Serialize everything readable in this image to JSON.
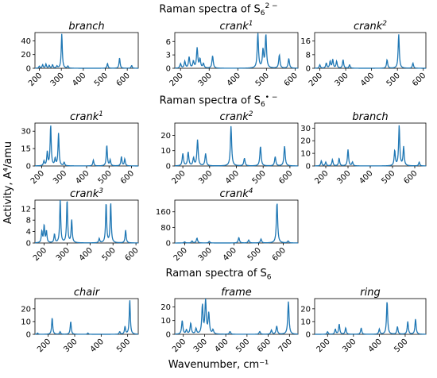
{
  "figure": {
    "section_titles": [
      {
        "text": "Raman spectra of S",
        "sub": "6",
        "sup": "2 −"
      },
      {
        "text": "Raman spectra of S",
        "sub": "6",
        "sup": "• −"
      },
      {
        "text": "Raman spectra of S",
        "sub": "6",
        "sup": ""
      }
    ],
    "ylabel": "Activity, A⁴/amu",
    "xlabel": "Wavenumber, cm⁻¹",
    "line_color": "#1f77b4"
  },
  "chart_data": [
    {
      "type": "line",
      "section": 1,
      "name": "branch",
      "title_sup": "",
      "xlim": [
        180,
        650
      ],
      "ylim": [
        0,
        52
      ],
      "xticks": [
        200,
        300,
        400,
        500,
        600
      ],
      "yticks": [
        0,
        20,
        40
      ],
      "peaks": [
        [
          200,
          3
        ],
        [
          215,
          5
        ],
        [
          230,
          6
        ],
        [
          245,
          4
        ],
        [
          260,
          5
        ],
        [
          280,
          3
        ],
        [
          302,
          50
        ],
        [
          330,
          3
        ],
        [
          510,
          7
        ],
        [
          565,
          15
        ],
        [
          620,
          4
        ]
      ]
    },
    {
      "type": "line",
      "section": 1,
      "name": "crank",
      "title_sup": "1",
      "xlim": [
        180,
        610
      ],
      "ylim": [
        0,
        8
      ],
      "xticks": [
        200,
        300,
        400,
        500,
        600
      ],
      "yticks": [
        0,
        3,
        6
      ],
      "peaks": [
        [
          200,
          1
        ],
        [
          215,
          1.5
        ],
        [
          230,
          2.5
        ],
        [
          245,
          1.5
        ],
        [
          258,
          4.5
        ],
        [
          268,
          2
        ],
        [
          280,
          1
        ],
        [
          312,
          2.8
        ],
        [
          470,
          7.8
        ],
        [
          488,
          4
        ],
        [
          498,
          7.5
        ],
        [
          545,
          3
        ],
        [
          578,
          2.2
        ]
      ]
    },
    {
      "type": "line",
      "section": 1,
      "name": "crank",
      "title_sup": "2",
      "xlim": [
        180,
        610
      ],
      "ylim": [
        0,
        21
      ],
      "xticks": [
        200,
        300,
        400,
        500,
        600
      ],
      "yticks": [
        0,
        8,
        16
      ],
      "peaks": [
        [
          200,
          2
        ],
        [
          225,
          3
        ],
        [
          240,
          4
        ],
        [
          250,
          5
        ],
        [
          265,
          4
        ],
        [
          290,
          5
        ],
        [
          315,
          2
        ],
        [
          460,
          5
        ],
        [
          505,
          20
        ],
        [
          560,
          3
        ]
      ]
    },
    {
      "type": "line",
      "section": 2,
      "name": "crank",
      "title_sup": "1",
      "xlim": [
        170,
        630
      ],
      "ylim": [
        0,
        37
      ],
      "xticks": [
        200,
        300,
        400,
        500,
        600
      ],
      "yticks": [
        0,
        15,
        30
      ],
      "peaks": [
        [
          210,
          4
        ],
        [
          225,
          12
        ],
        [
          240,
          35
        ],
        [
          260,
          6
        ],
        [
          275,
          28
        ],
        [
          300,
          3
        ],
        [
          430,
          5
        ],
        [
          490,
          18
        ],
        [
          505,
          5
        ],
        [
          555,
          8
        ],
        [
          570,
          6
        ]
      ]
    },
    {
      "type": "line",
      "section": 2,
      "name": "crank",
      "title_sup": "2",
      "xlim": [
        170,
        630
      ],
      "ylim": [
        0,
        28
      ],
      "xticks": [
        200,
        300,
        400,
        500,
        600
      ],
      "yticks": [
        0,
        10,
        20
      ],
      "peaks": [
        [
          200,
          8
        ],
        [
          220,
          9
        ],
        [
          240,
          5
        ],
        [
          255,
          17
        ],
        [
          285,
          8
        ],
        [
          380,
          26
        ],
        [
          430,
          5
        ],
        [
          490,
          13
        ],
        [
          545,
          6
        ],
        [
          580,
          13
        ]
      ]
    },
    {
      "type": "line",
      "section": 2,
      "name": "branch",
      "title_sup": "",
      "xlim": [
        150,
        650
      ],
      "ylim": [
        0,
        34
      ],
      "xticks": [
        200,
        300,
        400,
        500,
        600
      ],
      "yticks": [
        0,
        10,
        20,
        30
      ],
      "peaks": [
        [
          180,
          4
        ],
        [
          200,
          3
        ],
        [
          230,
          5
        ],
        [
          260,
          6
        ],
        [
          300,
          13
        ],
        [
          320,
          3
        ],
        [
          510,
          12
        ],
        [
          530,
          32
        ],
        [
          550,
          15
        ],
        [
          620,
          3
        ]
      ]
    },
    {
      "type": "line",
      "section": 2,
      "name": "crank",
      "title_sup": "3",
      "xlim": [
        160,
        610
      ],
      "ylim": [
        0,
        15
      ],
      "xticks": [
        200,
        300,
        400,
        500,
        600
      ],
      "yticks": [
        0,
        4,
        8,
        12
      ],
      "peaks": [
        [
          190,
          4
        ],
        [
          200,
          6
        ],
        [
          210,
          4
        ],
        [
          245,
          3
        ],
        [
          270,
          15
        ],
        [
          300,
          15
        ],
        [
          320,
          8
        ],
        [
          440,
          1.5
        ],
        [
          470,
          14
        ],
        [
          490,
          14
        ],
        [
          555,
          4.5
        ]
      ]
    },
    {
      "type": "line",
      "section": 2,
      "name": "crank",
      "title_sup": "4",
      "xlim": [
        160,
        660
      ],
      "ylim": [
        0,
        220
      ],
      "xticks": [
        200,
        300,
        400,
        500,
        600
      ],
      "yticks": [
        0,
        80,
        160
      ],
      "peaks": [
        [
          200,
          6
        ],
        [
          230,
          10
        ],
        [
          250,
          25
        ],
        [
          300,
          8
        ],
        [
          420,
          28
        ],
        [
          460,
          15
        ],
        [
          510,
          20
        ],
        [
          575,
          210
        ],
        [
          620,
          10
        ]
      ]
    },
    {
      "type": "line",
      "section": 3,
      "name": "chair",
      "title_sup": "",
      "xlim": [
        150,
        540
      ],
      "ylim": [
        0,
        28
      ],
      "xticks": [
        200,
        300,
        400,
        500
      ],
      "yticks": [
        0,
        10,
        20
      ],
      "peaks": [
        [
          160,
          1
        ],
        [
          215,
          13
        ],
        [
          245,
          2
        ],
        [
          285,
          10
        ],
        [
          350,
          1
        ],
        [
          470,
          2
        ],
        [
          490,
          6
        ],
        [
          508,
          27
        ]
      ]
    },
    {
      "type": "line",
      "section": 3,
      "name": "frame",
      "title_sup": "",
      "xlim": [
        160,
        740
      ],
      "ylim": [
        0,
        26
      ],
      "xticks": [
        200,
        300,
        400,
        500,
        600,
        700
      ],
      "yticks": [
        0,
        10,
        20
      ],
      "peaks": [
        [
          195,
          10
        ],
        [
          215,
          3
        ],
        [
          235,
          8
        ],
        [
          260,
          4
        ],
        [
          290,
          21
        ],
        [
          305,
          25
        ],
        [
          320,
          15
        ],
        [
          340,
          3
        ],
        [
          420,
          2
        ],
        [
          560,
          2
        ],
        [
          615,
          3
        ],
        [
          640,
          6
        ],
        [
          695,
          24
        ]
      ]
    },
    {
      "type": "line",
      "section": 3,
      "name": "ring",
      "title_sup": "",
      "xlim": [
        150,
        580
      ],
      "ylim": [
        0,
        28
      ],
      "xticks": [
        200,
        300,
        400,
        500
      ],
      "yticks": [
        0,
        10,
        20
      ],
      "peaks": [
        [
          200,
          2
        ],
        [
          230,
          4
        ],
        [
          245,
          8
        ],
        [
          270,
          5
        ],
        [
          330,
          5
        ],
        [
          400,
          4
        ],
        [
          430,
          26
        ],
        [
          470,
          6
        ],
        [
          510,
          10
        ],
        [
          540,
          12
        ]
      ]
    }
  ]
}
